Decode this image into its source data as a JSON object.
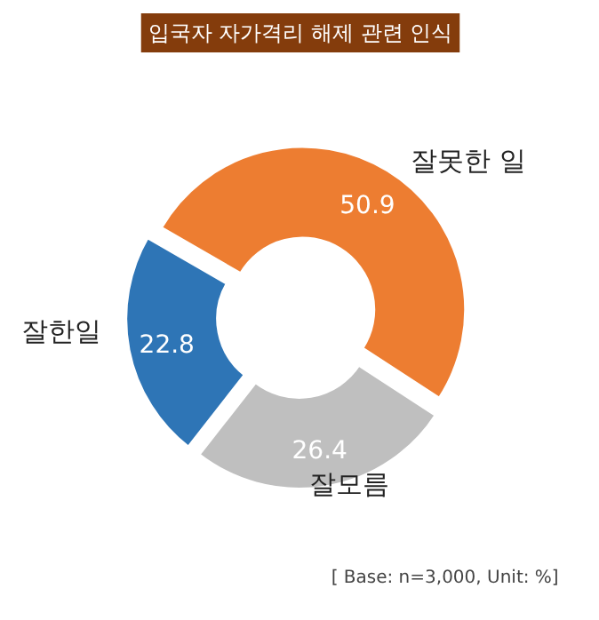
{
  "chart_data": {
    "type": "donut",
    "title": "입국자 자가격리 해제 관련 인식",
    "categories": [
      "잘못한 일",
      "잘모름",
      "잘한일"
    ],
    "values": [
      50.9,
      26.4,
      22.8
    ],
    "colors": [
      "#ed7d31",
      "#bfbfbf",
      "#2e75b6"
    ],
    "data_labels": true,
    "annotations": [
      "[ Base:  n=3,000, Unit: %]"
    ]
  }
}
